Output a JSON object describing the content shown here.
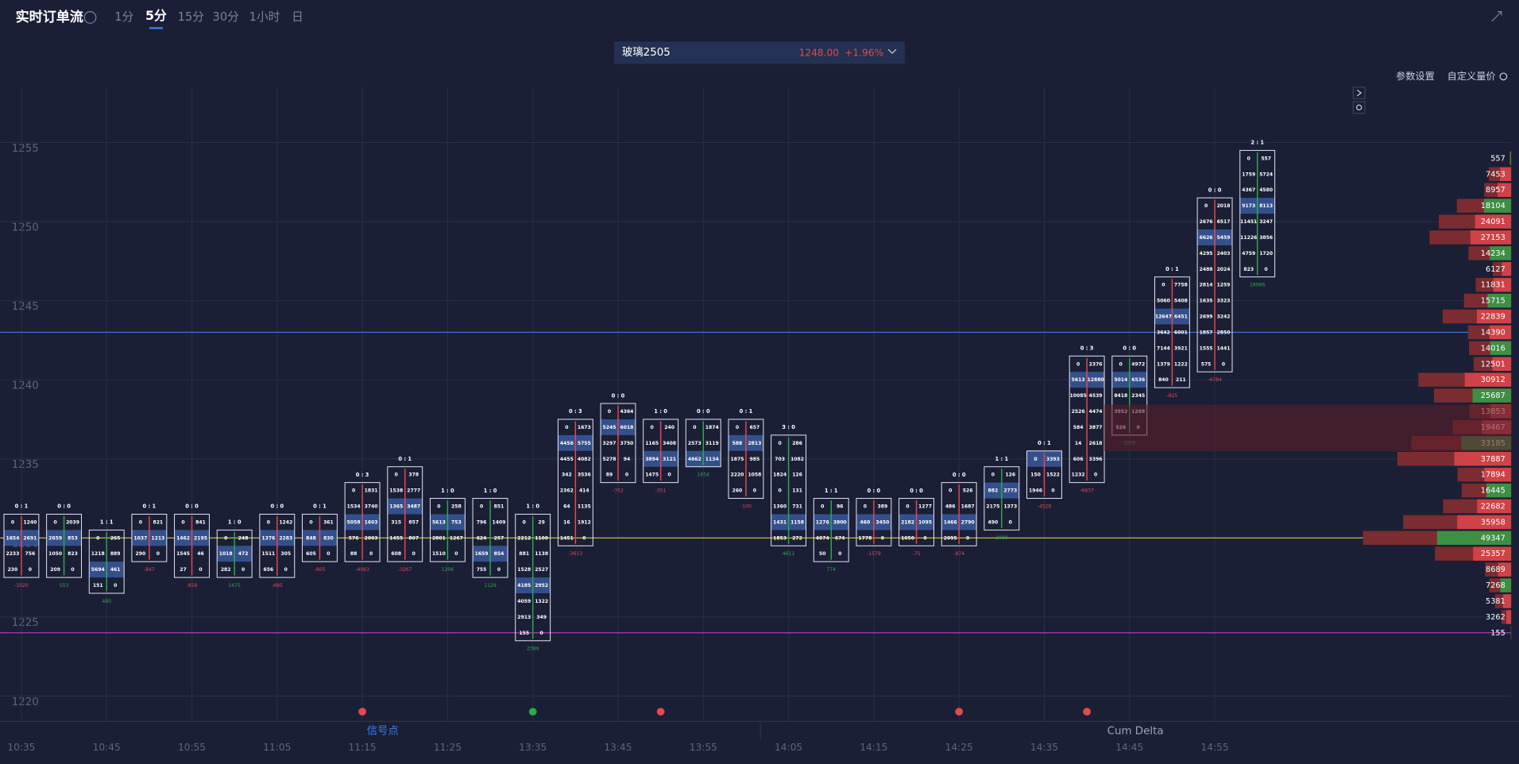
{
  "header": {
    "title": "实时订单流",
    "tabs": [
      "1分",
      "5分",
      "15分",
      "30分",
      "1小时",
      "日"
    ]
  },
  "symbol": {
    "name": "玻璃2505",
    "price": "1248.00",
    "change": "+1.96%"
  },
  "toolbar": {
    "settings": "参数设置",
    "custom": "自定义量价"
  },
  "panels": {
    "signals": "信号点",
    "cum_delta": "Cum Delta"
  },
  "chart_data": {
    "type": "footprint",
    "categories": [
      "10:35",
      null,
      "10:45",
      null,
      "10:55",
      null,
      "11:05",
      null,
      "11:15",
      null,
      "11:25",
      null,
      "13:35",
      null,
      "13:45",
      null,
      "13:55",
      null,
      "14:05",
      null,
      "14:15",
      null,
      "14:25",
      null,
      "14:35",
      null,
      "14:45",
      null,
      "14:55",
      null
    ],
    "ylim": [
      1218.4,
      1258.5
    ],
    "yticks": [
      1220,
      1225,
      1230,
      1235,
      1240,
      1245,
      1250,
      1255
    ],
    "grid": true,
    "colors": {
      "up": "#2fa84a",
      "down": "#e5484d",
      "poc": "#34508c",
      "profile": "#7a2c30",
      "text": "#ffffff"
    },
    "levels": [
      {
        "value": 1243,
        "color": "#4a78d0"
      },
      {
        "value": 1230,
        "color": "#c8b84a"
      },
      {
        "value": 1224,
        "color": "#c040c0"
      }
    ],
    "bars": [
      {
        "high": 1231,
        "low": 1228,
        "ratio": "0 : 1",
        "delta": -1020,
        "cells": [
          [
            0,
            1240
          ],
          [
            1654,
            2691
          ],
          [
            2233,
            756
          ],
          [
            230,
            0
          ]
        ]
      },
      {
        "high": 1231,
        "low": 1228,
        "ratio": "0 : 0",
        "delta": 553,
        "cells": [
          [
            0,
            2039
          ],
          [
            2659,
            853
          ],
          [
            1050,
            823
          ],
          [
            209,
            0
          ]
        ]
      },
      {
        "high": 1230,
        "low": 1227,
        "ratio": "1 : 1",
        "delta": 480,
        "cells": [
          [
            0,
            265
          ],
          [
            1218,
            889
          ],
          [
            5694,
            461
          ],
          [
            151,
            0
          ]
        ]
      },
      {
        "high": 1231,
        "low": 1229,
        "ratio": "0 : 1",
        "delta": -847,
        "cells": [
          [
            0,
            821
          ],
          [
            1037,
            1213
          ],
          [
            290,
            0
          ]
        ]
      },
      {
        "high": 1231,
        "low": 1228,
        "ratio": "0 : 0",
        "delta": -858,
        "cells": [
          [
            0,
            841
          ],
          [
            1462,
            2195
          ],
          [
            1545,
            46
          ],
          [
            27,
            0
          ]
        ]
      },
      {
        "high": 1230,
        "low": 1228,
        "ratio": "1 : 0",
        "delta": 1475,
        "cells": [
          [
            0,
            248
          ],
          [
            1018,
            472
          ],
          [
            282,
            0
          ]
        ]
      },
      {
        "high": 1231,
        "low": 1228,
        "ratio": "0 : 0",
        "delta": -685,
        "cells": [
          [
            0,
            1242
          ],
          [
            1376,
            2283
          ],
          [
            1511,
            305
          ],
          [
            656,
            0
          ]
        ]
      },
      {
        "high": 1231,
        "low": 1229,
        "ratio": "0 : 1",
        "delta": -805,
        "cells": [
          [
            0,
            361
          ],
          [
            848,
            830
          ],
          [
            605,
            0
          ]
        ]
      },
      {
        "high": 1233,
        "low": 1229,
        "ratio": "0 : 3",
        "delta": -4063,
        "cells": [
          [
            0,
            1831
          ],
          [
            1534,
            3740
          ],
          [
            5058,
            1603
          ],
          [
            576,
            2003
          ],
          [
            88,
            0
          ]
        ]
      },
      {
        "high": 1234,
        "low": 1229,
        "ratio": "0 : 1",
        "delta": -3267,
        "cells": [
          [
            0,
            378
          ],
          [
            1538,
            2777
          ],
          [
            1365,
            3487
          ],
          [
            315,
            857
          ],
          [
            1455,
            807
          ],
          [
            608,
            0
          ]
        ]
      },
      {
        "high": 1232,
        "low": 1229,
        "ratio": "1 : 0",
        "delta": 1206,
        "cells": [
          [
            0,
            258
          ],
          [
            5613,
            753
          ],
          [
            2801,
            1267
          ],
          [
            1510,
            0
          ]
        ]
      },
      {
        "high": 1232,
        "low": 1228,
        "ratio": "1 : 0",
        "delta": 1129,
        "cells": [
          [
            0,
            851
          ],
          [
            796,
            1409
          ],
          [
            624,
            257
          ],
          [
            1659,
            854
          ],
          [
            755,
            0
          ]
        ]
      },
      {
        "high": 1231,
        "low": 1224,
        "ratio": "1 : 0",
        "delta": 2389,
        "cells": [
          [
            0,
            29
          ],
          [
            2212,
            1100
          ],
          [
            881,
            1138
          ],
          [
            1528,
            2527
          ],
          [
            4185,
            2952
          ],
          [
            4059,
            1322
          ],
          [
            2913,
            349
          ],
          [
            155,
            0
          ]
        ]
      },
      {
        "high": 1237,
        "low": 1230,
        "ratio": "0 : 3",
        "delta": -3613,
        "cells": [
          [
            0,
            1673
          ],
          [
            4456,
            5755
          ],
          [
            4455,
            4082
          ],
          [
            342,
            3536
          ],
          [
            2362,
            414
          ],
          [
            64,
            1135
          ],
          [
            16,
            1912
          ],
          [
            1451,
            0
          ]
        ]
      },
      {
        "high": 1238,
        "low": 1234,
        "ratio": "0 : 0",
        "delta": -352,
        "cells": [
          [
            0,
            4364
          ],
          [
            5245,
            6018
          ],
          [
            3297,
            3750
          ],
          [
            5278,
            94
          ],
          [
            89,
            0
          ]
        ]
      },
      {
        "high": 1237,
        "low": 1234,
        "ratio": "1 : 0",
        "delta": -351,
        "cells": [
          [
            0,
            240
          ],
          [
            1165,
            3408
          ],
          [
            3894,
            3121
          ],
          [
            1475,
            0
          ]
        ]
      },
      {
        "high": 1237,
        "low": 1235,
        "ratio": "0 : 0",
        "delta": 1654,
        "cells": [
          [
            0,
            1874
          ],
          [
            2573,
            3119
          ],
          [
            4662,
            1134
          ]
        ]
      },
      {
        "high": 1237,
        "low": 1233,
        "ratio": "0 : 1",
        "delta": -100,
        "cells": [
          [
            0,
            657
          ],
          [
            588,
            2813
          ],
          [
            1875,
            985
          ],
          [
            2220,
            1058
          ],
          [
            260,
            0
          ]
        ]
      },
      {
        "high": 1236,
        "low": 1230,
        "ratio": "3 : 0",
        "delta": 4611,
        "cells": [
          [
            0,
            286
          ],
          [
            703,
            1082
          ],
          [
            1824,
            126
          ],
          [
            0,
            131
          ],
          [
            1360,
            731
          ],
          [
            1431,
            1158
          ],
          [
            1853,
            272
          ]
        ]
      },
      {
        "high": 1232,
        "low": 1229,
        "ratio": "1 : 1",
        "delta": 774,
        "cells": [
          [
            0,
            96
          ],
          [
            1276,
            3800
          ],
          [
            4074,
            674
          ],
          [
            50,
            0
          ]
        ]
      },
      {
        "high": 1232,
        "low": 1230,
        "ratio": "0 : 0",
        "delta": -1579,
        "cells": [
          [
            0,
            389
          ],
          [
            460,
            3450
          ],
          [
            1778,
            0
          ]
        ]
      },
      {
        "high": 1232,
        "low": 1230,
        "ratio": "0 : 0",
        "delta": -75,
        "cells": [
          [
            0,
            1277
          ],
          [
            2182,
            1095
          ],
          [
            1050,
            0
          ]
        ]
      },
      {
        "high": 1233,
        "low": 1230,
        "ratio": "0 : 0",
        "delta": -874,
        "cells": [
          [
            0,
            526
          ],
          [
            486,
            1687
          ],
          [
            1466,
            2790
          ],
          [
            2095,
            0
          ]
        ]
      },
      {
        "high": 1234,
        "low": 1231,
        "ratio": "1 : 1",
        "delta": 2088,
        "cells": [
          [
            0,
            126
          ],
          [
            882,
            2773
          ],
          [
            2175,
            1373
          ],
          [
            490,
            0
          ]
        ]
      },
      {
        "high": 1235,
        "low": 1233,
        "ratio": "0 : 1",
        "delta": -4528,
        "cells": [
          [
            0,
            3393
          ],
          [
            150,
            1522
          ],
          [
            1946,
            0
          ]
        ]
      },
      {
        "high": 1241,
        "low": 1234,
        "ratio": "0 : 3",
        "delta": -6637,
        "cells": [
          [
            0,
            2376
          ],
          [
            5613,
            12880
          ],
          [
            10085,
            4539
          ],
          [
            2526,
            4474
          ],
          [
            584,
            3877
          ],
          [
            14,
            2618
          ],
          [
            606,
            3396
          ],
          [
            1232,
            0
          ]
        ]
      },
      {
        "high": 1241,
        "low": 1237,
        "ratio": "0 : 0",
        "delta": 3208,
        "cells": [
          [
            0,
            4972
          ],
          [
            5014,
            6536
          ],
          [
            8418,
            2345
          ],
          [
            3952,
            1268
          ],
          [
            526,
            0
          ]
        ]
      },
      {
        "high": 1246,
        "low": 1240,
        "ratio": "0 : 1",
        "delta": -825,
        "cells": [
          [
            0,
            7758
          ],
          [
            5060,
            5408
          ],
          [
            12647,
            6451
          ],
          [
            3642,
            6001
          ],
          [
            7144,
            3921
          ],
          [
            1379,
            1222
          ],
          [
            840,
            211
          ]
        ]
      },
      {
        "high": 1251,
        "low": 1241,
        "ratio": "0 : 0",
        "delta": -4784,
        "cells": [
          [
            0,
            2018
          ],
          [
            2676,
            6517
          ],
          [
            6626,
            5459
          ],
          [
            4295,
            2403
          ],
          [
            2488,
            2024
          ],
          [
            2814,
            1259
          ],
          [
            1635,
            3323
          ],
          [
            2699,
            3242
          ],
          [
            1857,
            2850
          ],
          [
            1555,
            1441
          ],
          [
            575,
            0
          ]
        ]
      },
      {
        "high": 1254,
        "low": 1247,
        "ratio": "2 : 1",
        "delta": 16986,
        "cells": [
          [
            0,
            557
          ],
          [
            1759,
            5724
          ],
          [
            4367,
            4580
          ],
          [
            9173,
            8113
          ],
          [
            11451,
            3247
          ],
          [
            11226,
            3856
          ],
          [
            4759,
            1720
          ],
          [
            823,
            0
          ]
        ]
      }
    ],
    "profile": {
      "prices": [
        1254,
        1253,
        1252,
        1251,
        1250,
        1249,
        1248,
        1247,
        1246,
        1245,
        1244,
        1243,
        1242,
        1241,
        1240,
        1239,
        1238,
        1237,
        1236,
        1235,
        1234,
        1233,
        1232,
        1231,
        1230,
        1229,
        1228,
        1227,
        1226,
        1225,
        1224
      ],
      "values": [
        557,
        7453,
        8957,
        18104,
        24091,
        27153,
        14234,
        6127,
        11831,
        15715,
        22839,
        14390,
        14016,
        12501,
        30912,
        25687,
        13853,
        19467,
        33185,
        37887,
        17894,
        16445,
        22682,
        35958,
        49347,
        25357,
        8689,
        7268,
        5381,
        3262,
        155
      ]
    }
  }
}
